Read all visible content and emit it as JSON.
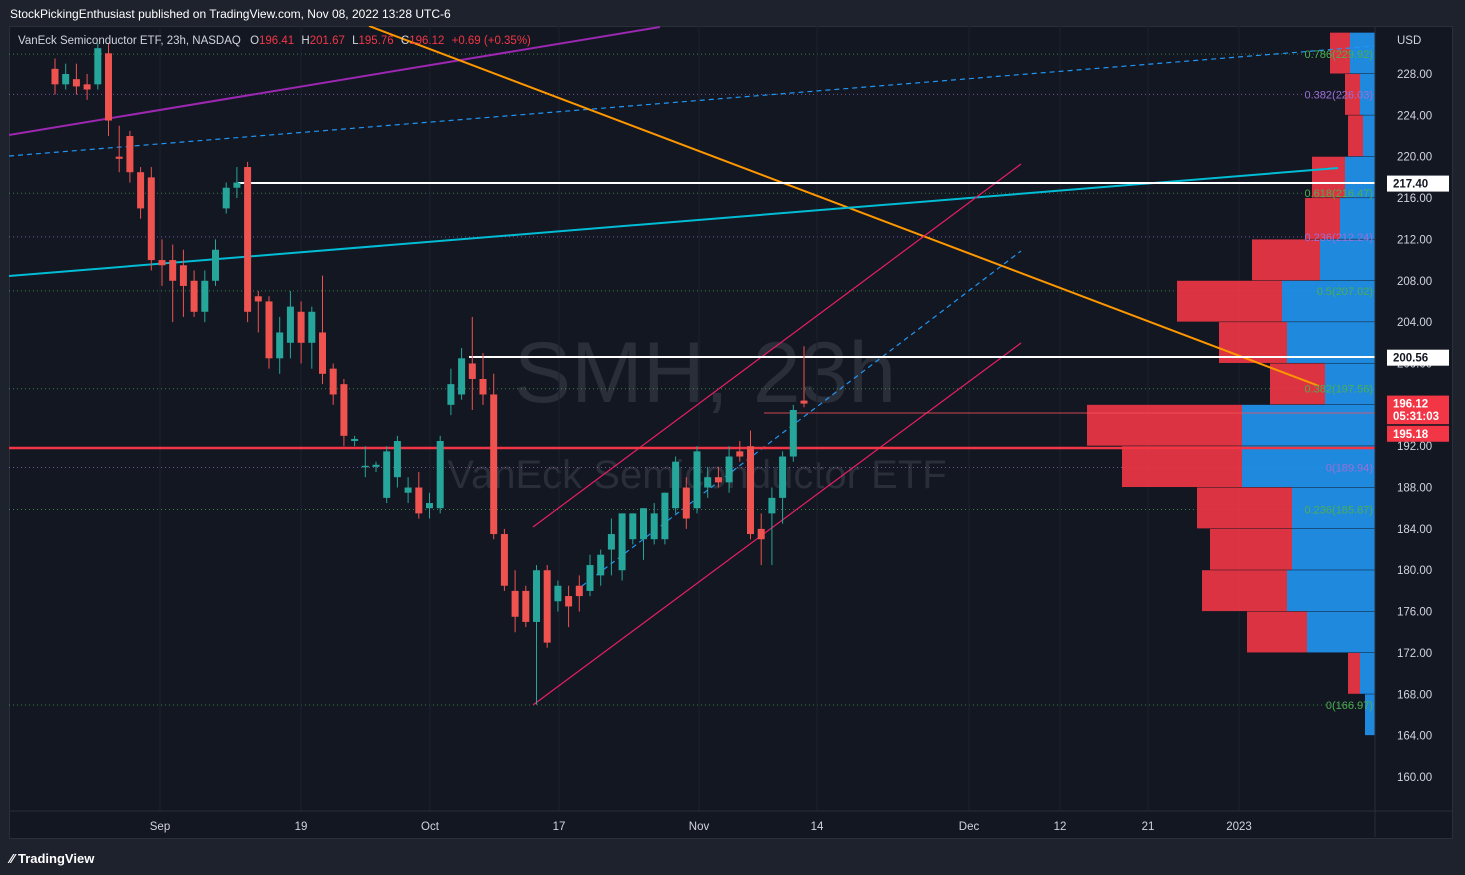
{
  "header": {
    "attribution": "StockPickingEnthusiast published on TradingView.com, Nov 08, 2022 13:28 UTC-6"
  },
  "legend": {
    "name": "VanEck Semiconductor ETF, 23h, NASDAQ",
    "o_label": "O",
    "o_value": "196.41",
    "h_label": "H",
    "h_value": "201.67",
    "l_label": "L",
    "l_value": "195.76",
    "c_label": "C",
    "c_value": "196.12",
    "change": "+0.69 (+0.35%)"
  },
  "watermark": {
    "symbol": "SMH, 23h",
    "name": "VanEck Semiconductor ETF"
  },
  "footer": {
    "logo_text": "TradingView"
  },
  "colors": {
    "up": "#26a69a",
    "down": "#ef5350",
    "buy_volume": "#2196f3",
    "sell_volume": "#f23645",
    "fib_green": "#4caf50",
    "fib_purple": "#9c6fd6",
    "trend_orange": "#ff9800",
    "trend_purple": "#9c27b0",
    "trend_cyan": "#00bcd4",
    "channel_pink": "#e91e63",
    "support_red": "#f23645",
    "level_white": "#ffffff"
  },
  "price_axis": {
    "currency": "USD",
    "ticks": [
      "228.00",
      "224.00",
      "220.00",
      "216.00",
      "212.00",
      "208.00",
      "204.00",
      "200.00",
      "196.00",
      "192.00",
      "188.00",
      "184.00",
      "180.00",
      "176.00",
      "172.00",
      "168.00",
      "164.00",
      "160.00"
    ],
    "tick_values": [
      228,
      224,
      220,
      216,
      212,
      208,
      204,
      200,
      196,
      192,
      188,
      184,
      180,
      176,
      172,
      168,
      164,
      160
    ],
    "markers": [
      {
        "label": "217.40",
        "value": 217.4,
        "style": "white"
      },
      {
        "label": "200.56",
        "value": 200.56,
        "style": "white"
      },
      {
        "label": "196.12",
        "value": 196.12,
        "style": "red"
      },
      {
        "label": "05:31:03",
        "value": 194.9,
        "style": "red-countdown"
      },
      {
        "label": "195.18",
        "value": 193.2,
        "style": "red"
      }
    ]
  },
  "time_axis": {
    "labels": [
      "Sep",
      "19",
      "Oct",
      "17",
      "Nov",
      "14",
      "Dec",
      "12",
      "21",
      "2023"
    ]
  },
  "chart_data": {
    "type": "candlestick",
    "title": "VanEck Semiconductor ETF, 23h, NASDAQ",
    "symbol": "SMH",
    "interval": "23h",
    "ylim": [
      157,
      232
    ],
    "x_labels": [
      "Sep",
      "19",
      "Oct",
      "17",
      "Nov",
      "14",
      "Dec",
      "12",
      "21",
      "2023"
    ],
    "candles": [
      {
        "o": 228.5,
        "h": 229.5,
        "l": 226,
        "c": 227
      },
      {
        "o": 227,
        "h": 229,
        "l": 226.5,
        "c": 228
      },
      {
        "o": 227.5,
        "h": 229,
        "l": 226,
        "c": 226.8
      },
      {
        "o": 227,
        "h": 228,
        "l": 225.5,
        "c": 226.5
      },
      {
        "o": 227,
        "h": 231,
        "l": 226.5,
        "c": 230.5
      },
      {
        "o": 230,
        "h": 231,
        "l": 222,
        "c": 223.5
      },
      {
        "o": 220,
        "h": 223,
        "l": 218.5,
        "c": 219.8
      },
      {
        "o": 222,
        "h": 222.5,
        "l": 217.5,
        "c": 218.5
      },
      {
        "o": 218.5,
        "h": 219,
        "l": 214,
        "c": 215
      },
      {
        "o": 218,
        "h": 219,
        "l": 209,
        "c": 210
      },
      {
        "o": 210,
        "h": 212,
        "l": 207.5,
        "c": 209.5
      },
      {
        "o": 210,
        "h": 211.5,
        "l": 204,
        "c": 208
      },
      {
        "o": 209.5,
        "h": 211,
        "l": 204.5,
        "c": 207.5
      },
      {
        "o": 208,
        "h": 209,
        "l": 204.5,
        "c": 205
      },
      {
        "o": 205,
        "h": 209,
        "l": 204,
        "c": 208
      },
      {
        "o": 208,
        "h": 212,
        "l": 207.5,
        "c": 211
      },
      {
        "o": 215,
        "h": 217.5,
        "l": 214.5,
        "c": 217
      },
      {
        "o": 217,
        "h": 219,
        "l": 216,
        "c": 217.5
      },
      {
        "o": 219,
        "h": 219.5,
        "l": 204,
        "c": 205
      },
      {
        "o": 206.5,
        "h": 207,
        "l": 203,
        "c": 206
      },
      {
        "o": 206,
        "h": 206.5,
        "l": 199.5,
        "c": 200.5
      },
      {
        "o": 200.5,
        "h": 204.5,
        "l": 199,
        "c": 203
      },
      {
        "o": 202,
        "h": 207,
        "l": 200.5,
        "c": 205.5
      },
      {
        "o": 205,
        "h": 206,
        "l": 200,
        "c": 202
      },
      {
        "o": 202,
        "h": 205.5,
        "l": 199.5,
        "c": 205
      },
      {
        "o": 203,
        "h": 208.5,
        "l": 198,
        "c": 199
      },
      {
        "o": 199.5,
        "h": 200,
        "l": 196,
        "c": 197
      },
      {
        "o": 198,
        "h": 198.5,
        "l": 192,
        "c": 193
      },
      {
        "o": 192.5,
        "h": 193,
        "l": 192,
        "c": 192.7
      },
      {
        "o": 190,
        "h": 192,
        "l": 189,
        "c": 190.1
      },
      {
        "o": 190,
        "h": 190.5,
        "l": 189.5,
        "c": 190.2
      },
      {
        "o": 187,
        "h": 192,
        "l": 186.5,
        "c": 191.5
      },
      {
        "o": 189,
        "h": 193,
        "l": 188,
        "c": 192.5
      },
      {
        "o": 187.5,
        "h": 189,
        "l": 186.5,
        "c": 188
      },
      {
        "o": 188,
        "h": 189.5,
        "l": 185,
        "c": 185.5
      },
      {
        "o": 186,
        "h": 187.5,
        "l": 185,
        "c": 186.5
      },
      {
        "o": 186,
        "h": 193,
        "l": 185.5,
        "c": 192.5
      },
      {
        "o": 196,
        "h": 199.5,
        "l": 195,
        "c": 198
      },
      {
        "o": 197,
        "h": 201.5,
        "l": 196.5,
        "c": 200.5
      },
      {
        "o": 200,
        "h": 204.5,
        "l": 195.5,
        "c": 198.5
      },
      {
        "o": 198.5,
        "h": 201,
        "l": 196,
        "c": 197
      },
      {
        "o": 197,
        "h": 199,
        "l": 183,
        "c": 183.5
      },
      {
        "o": 183.5,
        "h": 184,
        "l": 178,
        "c": 178.5
      },
      {
        "o": 178,
        "h": 180,
        "l": 174,
        "c": 175.5
      },
      {
        "o": 178,
        "h": 178.5,
        "l": 174.5,
        "c": 175
      },
      {
        "o": 175,
        "h": 180.5,
        "l": 167,
        "c": 180
      },
      {
        "o": 180,
        "h": 180.5,
        "l": 172.5,
        "c": 173
      },
      {
        "o": 177,
        "h": 179,
        "l": 176,
        "c": 178.5
      },
      {
        "o": 177.5,
        "h": 178.5,
        "l": 174.5,
        "c": 176.5
      },
      {
        "o": 178.5,
        "h": 179.5,
        "l": 176,
        "c": 177.5
      },
      {
        "o": 178,
        "h": 181.5,
        "l": 177.5,
        "c": 180.5
      },
      {
        "o": 179.5,
        "h": 182,
        "l": 178.5,
        "c": 181.5
      },
      {
        "o": 182,
        "h": 185,
        "l": 179.5,
        "c": 183.5
      },
      {
        "o": 180,
        "h": 185.5,
        "l": 179,
        "c": 185.5
      },
      {
        "o": 183,
        "h": 185.5,
        "l": 182.5,
        "c": 185.5
      },
      {
        "o": 183,
        "h": 186,
        "l": 181,
        "c": 186
      },
      {
        "o": 183,
        "h": 186.5,
        "l": 182.5,
        "c": 185.5
      },
      {
        "o": 183,
        "h": 187.5,
        "l": 182.5,
        "c": 187.5
      },
      {
        "o": 186,
        "h": 191,
        "l": 185.5,
        "c": 190.5
      },
      {
        "o": 188,
        "h": 189,
        "l": 184,
        "c": 185
      },
      {
        "o": 186,
        "h": 192,
        "l": 185.5,
        "c": 191.5
      },
      {
        "o": 188,
        "h": 190,
        "l": 187,
        "c": 189
      },
      {
        "o": 189,
        "h": 190,
        "l": 188,
        "c": 188.5
      },
      {
        "o": 188.5,
        "h": 192,
        "l": 187.5,
        "c": 191
      },
      {
        "o": 191.5,
        "h": 192.5,
        "l": 190.5,
        "c": 191
      },
      {
        "o": 192,
        "h": 193.5,
        "l": 183,
        "c": 183.5
      },
      {
        "o": 184,
        "h": 185.5,
        "l": 180.5,
        "c": 183
      },
      {
        "o": 185.5,
        "h": 188,
        "l": 180.5,
        "c": 187
      },
      {
        "o": 187,
        "h": 191.5,
        "l": 184.5,
        "c": 191
      },
      {
        "o": 191,
        "h": 196,
        "l": 190.5,
        "c": 195.5
      },
      {
        "o": 196.41,
        "h": 201.67,
        "l": 195.76,
        "c": 196.12
      }
    ],
    "horizontal_levels": [
      {
        "price": 217.4,
        "color": "white"
      },
      {
        "price": 200.56,
        "color": "white"
      },
      {
        "price": 191.5,
        "color": "red"
      },
      {
        "price": 195.18,
        "color": "pink-thin"
      }
    ],
    "fibonacci_green": [
      {
        "label": "0.786(229.92)",
        "value": 229.92
      },
      {
        "label": "0.618(216.47)",
        "value": 216.47
      },
      {
        "label": "0.5(207.02)",
        "value": 207.02
      },
      {
        "label": "0.382(197.56)",
        "value": 197.56
      },
      {
        "label": "0.236(185.87)",
        "value": 185.87
      },
      {
        "label": "0(166.97)",
        "value": 166.97
      }
    ],
    "fibonacci_purple": [
      {
        "label": "0.382(226.03)",
        "value": 226.03
      },
      {
        "label": "0.236(212.24)",
        "value": 212.24
      },
      {
        "label": "0(189.94)",
        "value": 189.94
      }
    ],
    "volume_profile": [
      {
        "low": 228,
        "high": 232,
        "buy": 0.25,
        "sell": 0.2
      },
      {
        "low": 224,
        "high": 228,
        "buy": 0.15,
        "sell": 0.15
      },
      {
        "low": 220,
        "high": 224,
        "buy": 0.12,
        "sell": 0.15
      },
      {
        "low": 216,
        "high": 220,
        "buy": 0.3,
        "sell": 0.33
      },
      {
        "low": 212,
        "high": 216,
        "buy": 0.35,
        "sell": 0.35
      },
      {
        "low": 208,
        "high": 212,
        "buy": 0.55,
        "sell": 0.68
      },
      {
        "low": 204,
        "high": 208,
        "buy": 0.93,
        "sell": 1.05
      },
      {
        "low": 200,
        "high": 204,
        "buy": 0.88,
        "sell": 0.68
      },
      {
        "low": 196,
        "high": 200,
        "buy": 0.5,
        "sell": 0.55
      },
      {
        "low": 192,
        "high": 196,
        "buy": 1.33,
        "sell": 1.55
      },
      {
        "low": 188,
        "high": 192,
        "buy": 1.33,
        "sell": 1.2
      },
      {
        "low": 184,
        "high": 188,
        "buy": 0.83,
        "sell": 0.95
      },
      {
        "low": 180,
        "high": 184,
        "buy": 0.83,
        "sell": 0.82
      },
      {
        "low": 176,
        "high": 180,
        "buy": 0.88,
        "sell": 0.85
      },
      {
        "low": 172,
        "high": 176,
        "buy": 0.68,
        "sell": 0.6
      },
      {
        "low": 168,
        "high": 172,
        "buy": 0.15,
        "sell": 0.12
      },
      {
        "low": 164,
        "high": 168,
        "buy": 0.1,
        "sell": 0
      }
    ]
  }
}
